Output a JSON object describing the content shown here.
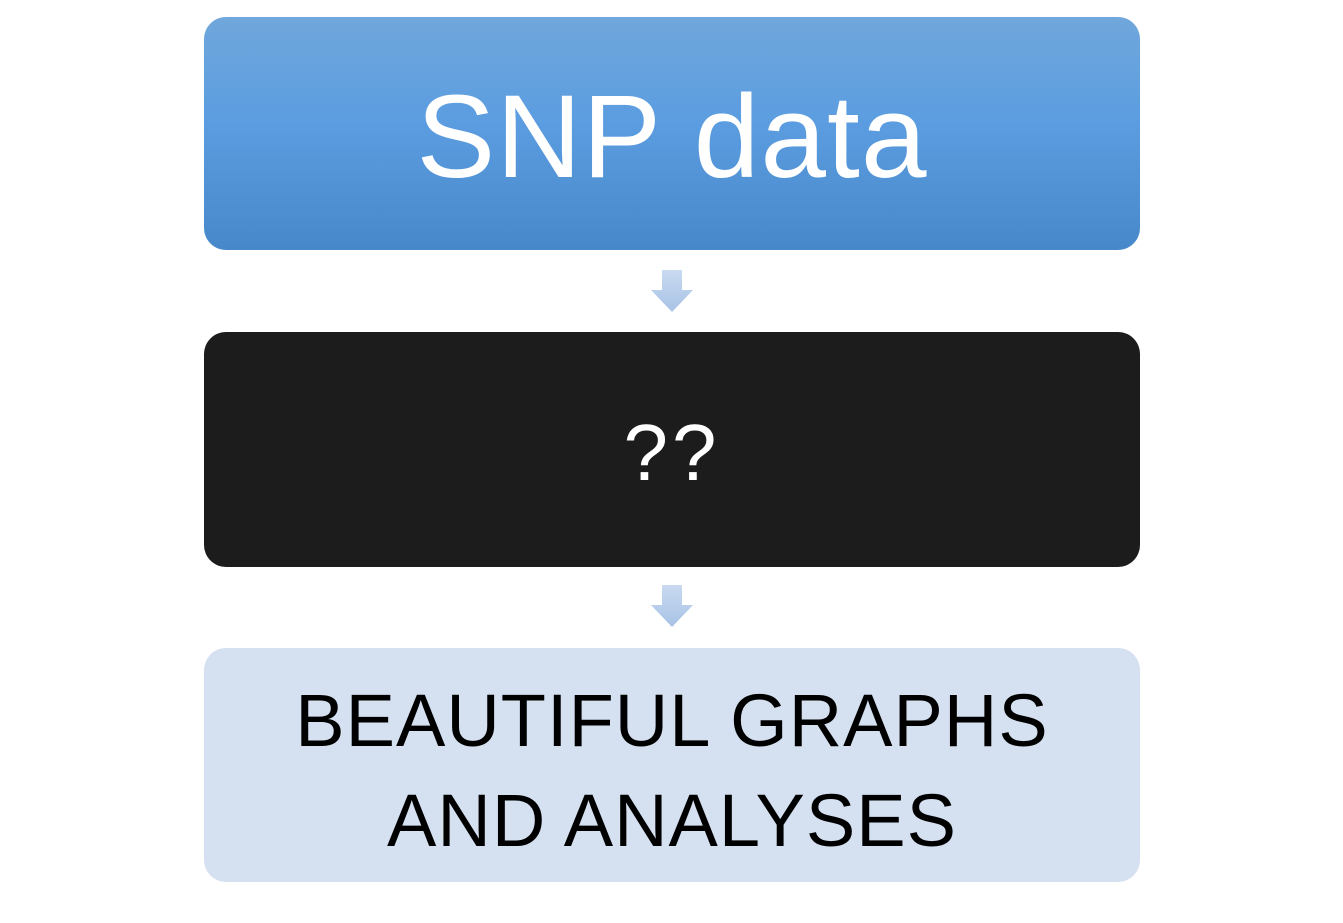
{
  "diagram": {
    "steps": [
      {
        "label": "SNP data",
        "fill": "#5b9de0",
        "text_color": "#ffffff"
      },
      {
        "label": "??",
        "fill": "#1c1c1c",
        "text_color": "#ffffff"
      },
      {
        "label_line1": "BEAUTIFUL GRAPHS",
        "label_line2": "AND ANALYSES",
        "fill": "#d5e0f1",
        "text_color": "#000000"
      }
    ],
    "connector_color": "#b3cbe8",
    "connector_icon": "down-arrow-icon"
  }
}
